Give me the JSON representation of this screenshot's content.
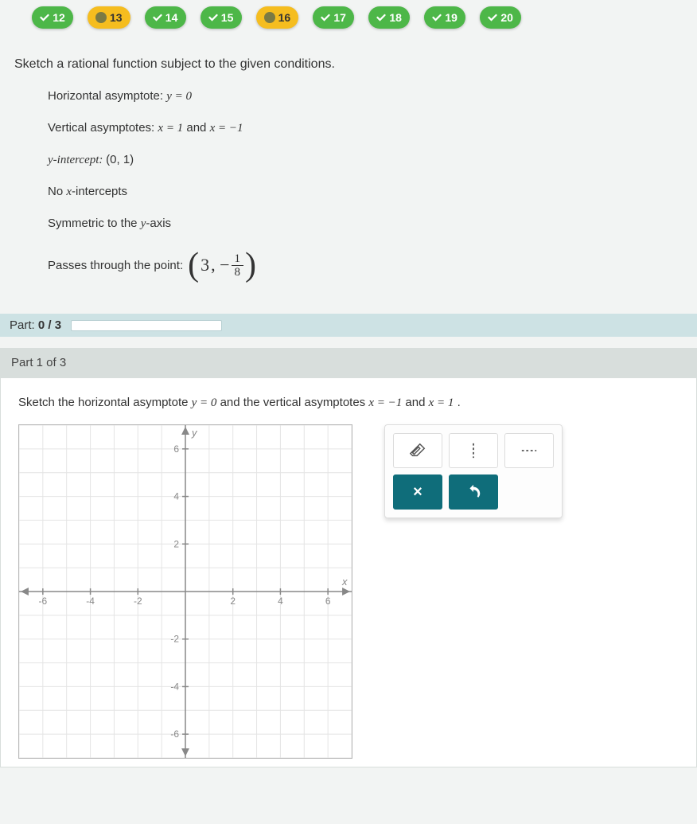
{
  "nav": [
    {
      "num": "12",
      "style": "green",
      "icon": "check"
    },
    {
      "num": "13",
      "style": "amber",
      "icon": "dot"
    },
    {
      "num": "14",
      "style": "green",
      "icon": "check"
    },
    {
      "num": "15",
      "style": "green",
      "icon": "check"
    },
    {
      "num": "16",
      "style": "amber",
      "icon": "dot"
    },
    {
      "num": "17",
      "style": "green",
      "icon": "check"
    },
    {
      "num": "18",
      "style": "green",
      "icon": "check"
    },
    {
      "num": "19",
      "style": "green",
      "icon": "check"
    },
    {
      "num": "20",
      "style": "green",
      "icon": "check"
    }
  ],
  "question": {
    "title": "Sketch a rational function subject to the given conditions.",
    "conditions": {
      "ha_label": "Horizontal asymptote: ",
      "ha_eq": "y = 0",
      "va_label": "Vertical asymptotes: ",
      "va_eq1": "x = 1",
      "va_and": " and ",
      "va_eq2": "x = −1",
      "yint_label": "y-intercept: ",
      "yint_val": "(0, 1)",
      "noxint": "No x-intercepts",
      "sym": "Symmetric to the y-axis",
      "pass_label": "Passes through the point: ",
      "point_x": "3",
      "point_comma": ", −",
      "point_num": "1",
      "point_den": "8"
    }
  },
  "progress": {
    "label_a": "Part: ",
    "label_b": "0 / 3"
  },
  "part": {
    "header": "Part 1 of 3",
    "instr_a": "Sketch the horizontal asymptote ",
    "instr_eq1": "y = 0",
    "instr_b": " and the vertical asymptotes ",
    "instr_eq2": "x = −1",
    "instr_c": " and ",
    "instr_eq3": "x = 1",
    "instr_d": "."
  },
  "graph": {
    "xmin": -7,
    "xmax": 7,
    "ymin": -7,
    "ymax": 7,
    "xticks": [
      -6,
      -4,
      -2,
      2,
      4,
      6
    ],
    "yticks": [
      -6,
      -4,
      -2,
      2,
      4,
      6
    ],
    "xlabel": "x",
    "ylabel": "y",
    "grid_color": "#e4e4e4",
    "axis_color": "#888",
    "tick_label_color": "#888",
    "tick_fontsize": 12
  },
  "tools": {
    "eraser": "eraser-icon",
    "vdash": "vertical-dash-icon",
    "hdash": "horizontal-dash-icon",
    "close": "×",
    "undo": "↺"
  },
  "colors": {
    "green": "#4db748",
    "amber": "#f5bd1f",
    "teal": "#0f6d7a",
    "section_header": "#cde2e4",
    "part_header": "#d8dedc"
  }
}
